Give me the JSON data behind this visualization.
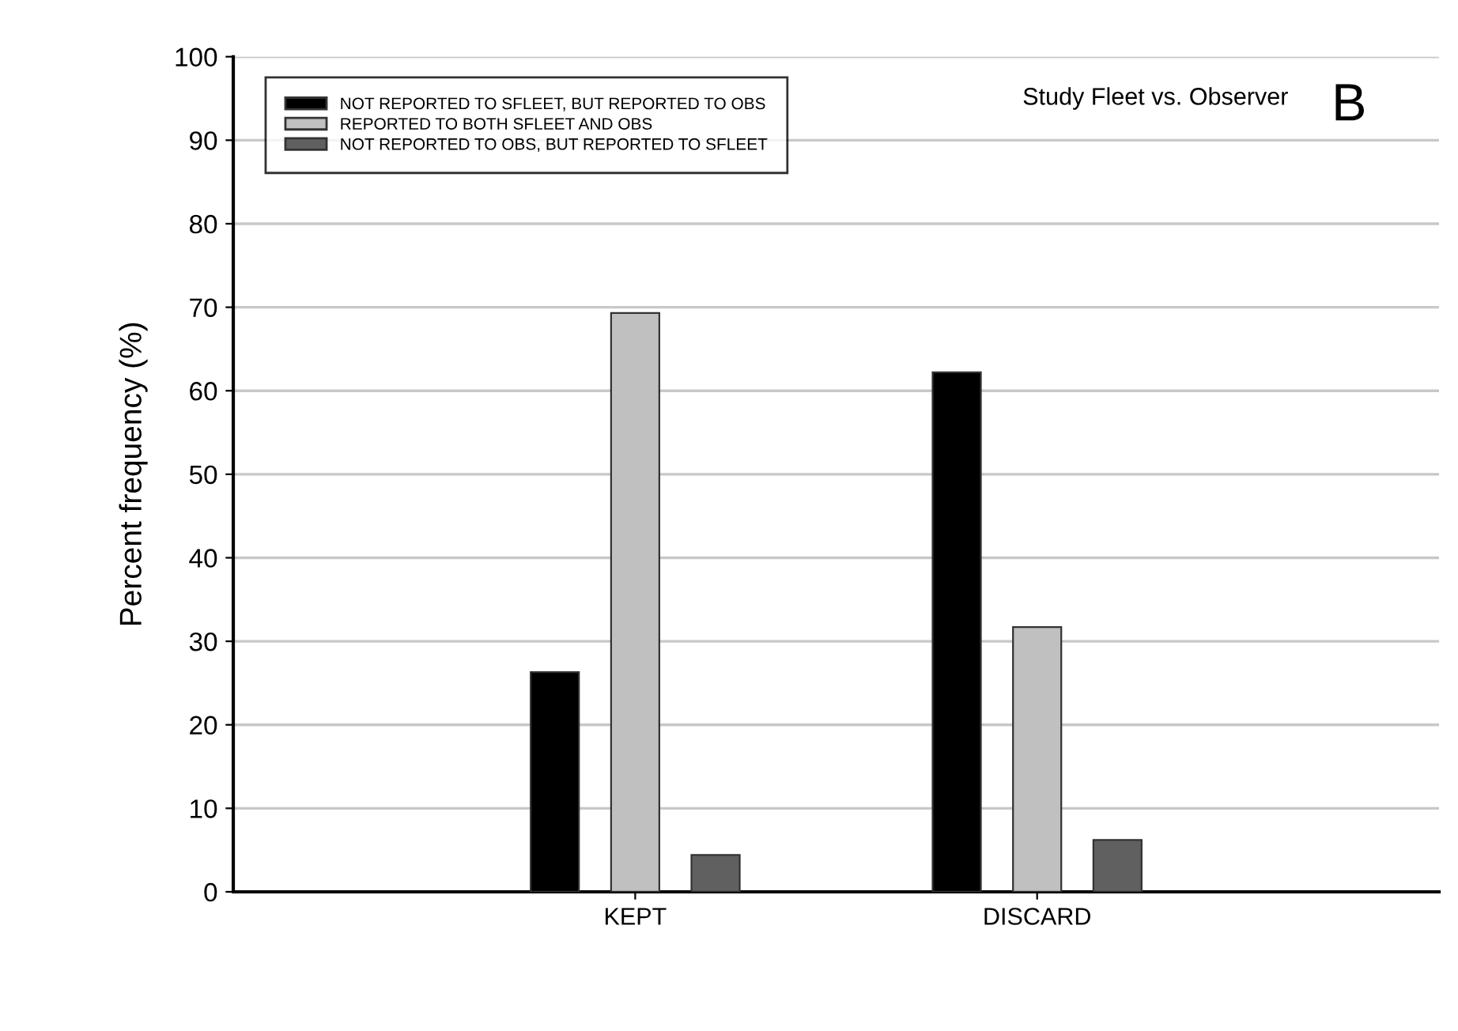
{
  "chart_data": {
    "type": "bar",
    "ylabel": "Percent frequency (%)",
    "categories": [
      "KEPT",
      "DISCARD"
    ],
    "series": [
      {
        "name": "NOT REPORTED TO SFLEET, BUT REPORTED TO OBS",
        "color": "#000000",
        "values": [
          26.3,
          62.2
        ]
      },
      {
        "name": "REPORTED TO BOTH SFLEET AND OBS",
        "color": "#c0c0c0",
        "values": [
          69.3,
          31.7
        ]
      },
      {
        "name": "NOT REPORTED TO OBS, BUT REPORTED TO SFLEET",
        "color": "#606060",
        "values": [
          4.4,
          6.2
        ]
      }
    ],
    "ylim": [
      0,
      100
    ],
    "yticks": [
      0,
      10,
      20,
      30,
      40,
      50,
      60,
      70,
      80,
      90,
      100
    ],
    "grid": "y",
    "legend": "top left",
    "annotations": [
      "Study Fleet vs. Observer",
      "B"
    ]
  }
}
